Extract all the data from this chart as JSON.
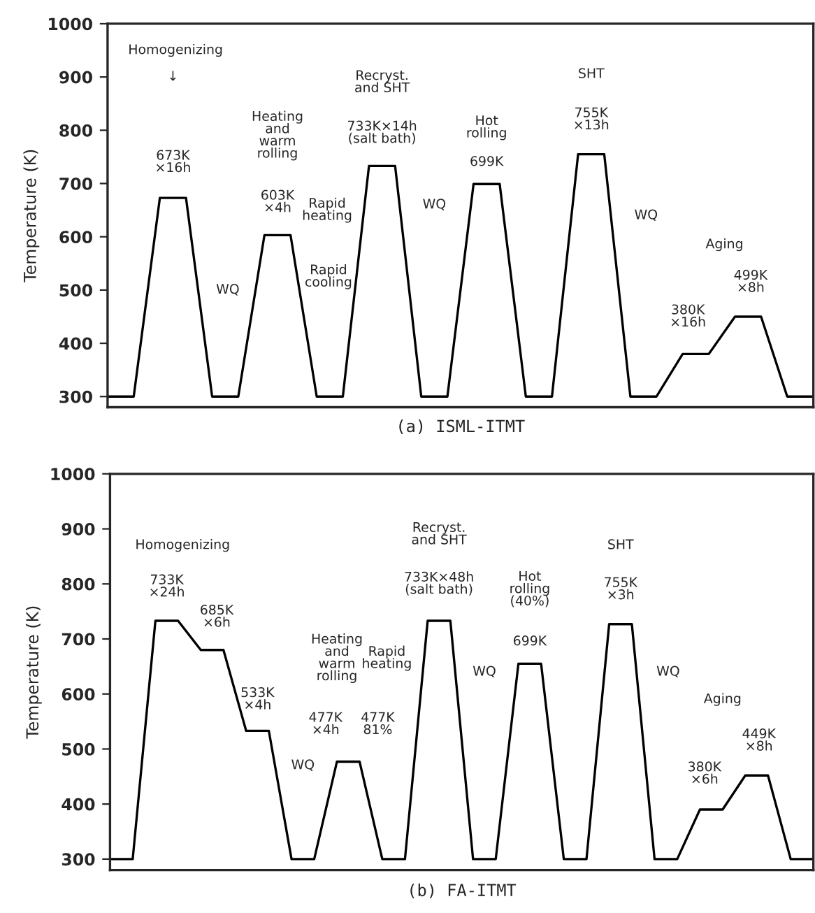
{
  "chart_data": [
    {
      "type": "line",
      "title": "(a) ISML-ITMT",
      "ylabel": "Temperature (K)",
      "ylim": [
        280,
        1000
      ],
      "yticks": [
        300,
        400,
        500,
        600,
        700,
        800,
        900,
        1000
      ],
      "tick_labels": "y",
      "categories": [
        null,
        null,
        null,
        null,
        null,
        null,
        null,
        null,
        null,
        null,
        null,
        null,
        null,
        null,
        null,
        null,
        null,
        null,
        null,
        null,
        null,
        null,
        null,
        null,
        null,
        null,
        null,
        null
      ],
      "series": [
        {
          "color": "#000000",
          "values": [
            300,
            300,
            673,
            673,
            300,
            300,
            603,
            603,
            300,
            300,
            733,
            733,
            300,
            300,
            699,
            699,
            300,
            300,
            755,
            755,
            300,
            300,
            380,
            380,
            450,
            450,
            300,
            300
          ]
        }
      ],
      "annotations": [
        "Homogenizing",
        "↓",
        "673K\n×16h",
        "WQ",
        "Heating\nand\nwarm\nrolling",
        "603K\n×4h",
        "Rapid\ncooling",
        "Recryst.\nand SHT",
        "733K×14h\n(salt bath)",
        "Rapid\nheating",
        "WQ",
        "Hot\nrolling",
        "699K",
        "SHT",
        "755K\n×13h",
        "WQ",
        "Aging",
        "499K\n×8h",
        "380K\n×16h"
      ]
    },
    {
      "type": "line",
      "title": "(b) FA-ITMT",
      "ylabel": "Temperature (K)",
      "ylim": [
        280,
        1000
      ],
      "yticks": [
        300,
        400,
        500,
        600,
        700,
        800,
        900,
        1000
      ],
      "tick_labels": "y",
      "categories": [
        null,
        null,
        null,
        null,
        null,
        null,
        null,
        null,
        null,
        null,
        null,
        null,
        null,
        null,
        null,
        null,
        null,
        null,
        null,
        null,
        null,
        null,
        null,
        null,
        null,
        null,
        null,
        null,
        null,
        null,
        null,
        null
      ],
      "series": [
        {
          "color": "#000000",
          "values": [
            300,
            300,
            733,
            733,
            680,
            680,
            533,
            533,
            300,
            300,
            477,
            477,
            300,
            300,
            733,
            733,
            300,
            300,
            655,
            655,
            300,
            300,
            727,
            727,
            300,
            300,
            390,
            390,
            452,
            452,
            300,
            300
          ]
        }
      ],
      "annotations": [
        "Homogenizing",
        "733K\n×24h",
        "685K\n×6h",
        "533K\n×4h",
        "WQ",
        "Heating\nand\nwarm\nrolling",
        "477K\n×4h",
        "477K\n81%",
        "Recryst.\nand SHT",
        "733K×48h\n(salt bath)",
        "Rapid\nheating",
        "WQ",
        "Hot\nrolling\n(40%)",
        "699K",
        "SHT",
        "755K\n×3h",
        "WQ",
        "Aging",
        "449K\n×8h",
        "380K\n×6h"
      ]
    }
  ]
}
